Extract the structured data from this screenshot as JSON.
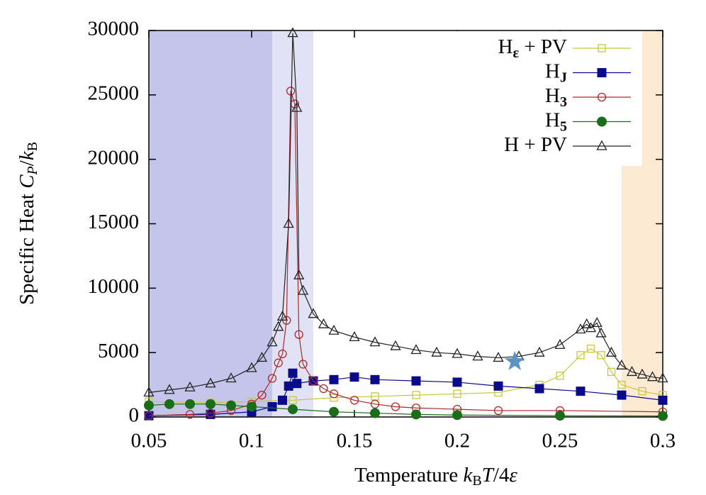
{
  "chart_data": {
    "type": "line",
    "ylabel": [
      "Specific Heat ",
      "C",
      "P",
      "/",
      "k",
      "B"
    ],
    "xlabel": [
      "Temperature  ",
      "k",
      "B",
      "T",
      "/4",
      "ε"
    ],
    "xlim": [
      0.05,
      0.3
    ],
    "xticks": [
      0.05,
      0.1,
      0.15,
      0.2,
      0.25,
      0.3
    ],
    "ylim": [
      0,
      30000
    ],
    "yticks": [
      0,
      5000,
      10000,
      15000,
      20000,
      25000,
      30000
    ],
    "regions": [
      {
        "xlim": [
          0.05,
          0.11
        ],
        "color": "#c5c5ec"
      },
      {
        "xlim": [
          0.11,
          0.13
        ],
        "color": "#e2e2f6"
      },
      {
        "xlim": [
          0.28,
          0.3
        ],
        "color": "#fcebd2"
      }
    ],
    "star": {
      "x": 0.228,
      "y": 4300,
      "color": "#5b93c4"
    },
    "legend": "upper right",
    "series": [
      {
        "name": [
          "H",
          "ε",
          " + PV"
        ],
        "color": "#c8c83a",
        "marker": "open-square",
        "x": [
          0.05,
          0.08,
          0.1,
          0.12,
          0.14,
          0.16,
          0.18,
          0.2,
          0.22,
          0.24,
          0.25,
          0.26,
          0.265,
          0.27,
          0.275,
          0.28,
          0.29,
          0.3
        ],
        "values": [
          1200,
          1100,
          1200,
          1300,
          1500,
          1600,
          1700,
          1800,
          1900,
          2500,
          3200,
          4800,
          5300,
          4800,
          3500,
          2500,
          2000,
          1700
        ]
      },
      {
        "name": [
          "H",
          "J"
        ],
        "color": "#0a0a8c",
        "marker": "filled-square",
        "x": [
          0.05,
          0.08,
          0.1,
          0.11,
          0.115,
          0.118,
          0.12,
          0.122,
          0.13,
          0.14,
          0.15,
          0.16,
          0.18,
          0.2,
          0.22,
          0.24,
          0.26,
          0.28,
          0.3
        ],
        "values": [
          100,
          200,
          400,
          800,
          1300,
          2400,
          3400,
          2600,
          2800,
          2900,
          3100,
          2900,
          2800,
          2700,
          2400,
          2200,
          2000,
          1700,
          1300
        ]
      },
      {
        "name": [
          "H",
          "3"
        ],
        "color": "#b02828",
        "marker": "open-circle",
        "x": [
          0.05,
          0.07,
          0.08,
          0.09,
          0.1,
          0.105,
          0.11,
          0.113,
          0.115,
          0.117,
          0.119,
          0.121,
          0.123,
          0.125,
          0.13,
          0.135,
          0.14,
          0.15,
          0.16,
          0.17,
          0.18,
          0.2,
          0.22,
          0.25,
          0.3
        ],
        "values": [
          100,
          200,
          300,
          500,
          1000,
          1700,
          3000,
          4200,
          4900,
          7500,
          25300,
          24300,
          6400,
          4100,
          2800,
          2200,
          1800,
          1300,
          1000,
          800,
          700,
          600,
          500,
          500,
          400
        ]
      },
      {
        "name": [
          "H",
          "5"
        ],
        "color": "#1a6e1a",
        "marker": "filled-circle",
        "x": [
          0.05,
          0.06,
          0.07,
          0.08,
          0.09,
          0.1,
          0.12,
          0.14,
          0.16,
          0.18,
          0.2,
          0.25,
          0.3
        ],
        "values": [
          900,
          1000,
          1000,
          1000,
          900,
          800,
          600,
          400,
          300,
          200,
          150,
          100,
          80
        ]
      },
      {
        "name": [
          "H + PV"
        ],
        "color": "#222222",
        "marker": "open-triangle",
        "x": [
          0.05,
          0.06,
          0.07,
          0.08,
          0.09,
          0.1,
          0.105,
          0.11,
          0.113,
          0.115,
          0.118,
          0.12,
          0.122,
          0.123,
          0.125,
          0.13,
          0.135,
          0.14,
          0.15,
          0.16,
          0.17,
          0.18,
          0.19,
          0.2,
          0.21,
          0.22,
          0.23,
          0.24,
          0.25,
          0.26,
          0.263,
          0.265,
          0.268,
          0.27,
          0.275,
          0.28,
          0.285,
          0.29,
          0.295,
          0.3
        ],
        "values": [
          1900,
          2100,
          2300,
          2600,
          3000,
          3800,
          4600,
          5800,
          7000,
          7800,
          15000,
          29800,
          24000,
          11000,
          9800,
          8000,
          7200,
          6700,
          6200,
          5800,
          5500,
          5200,
          5000,
          4900,
          4700,
          4600,
          4700,
          5000,
          5600,
          6800,
          7200,
          6900,
          7300,
          6500,
          5000,
          4000,
          3500,
          3300,
          3100,
          3000
        ]
      }
    ]
  }
}
